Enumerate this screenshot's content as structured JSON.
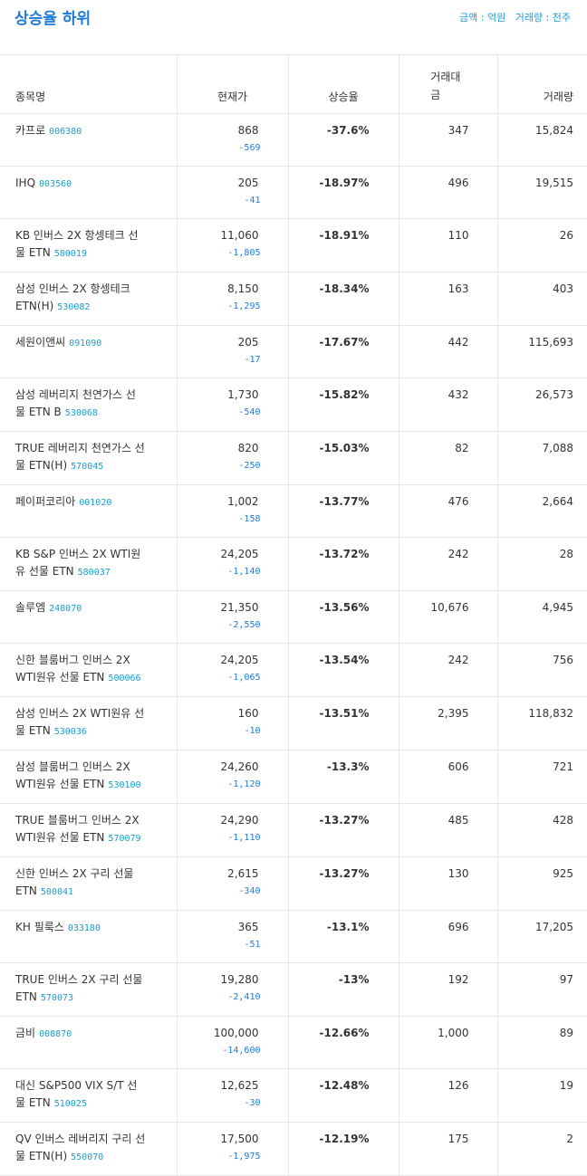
{
  "header": {
    "title": "상승율 하위",
    "units": "금액 : 억원   거래량 : 천주"
  },
  "table": {
    "columns": [
      "종목명",
      "현재가",
      "상승율",
      "거래대금",
      "거래량"
    ],
    "rows": [
      {
        "name": "카프로",
        "code": "006380",
        "price": "868",
        "change": "-569",
        "rate": "-37.6%",
        "amount": "347",
        "volume": "15,824"
      },
      {
        "name": "IHQ",
        "code": "003560",
        "price": "205",
        "change": "-41",
        "rate": "-18.97%",
        "amount": "496",
        "volume": "19,515"
      },
      {
        "name": "KB 인버스 2X 항셍테크 선물 ETN",
        "code": "580019",
        "price": "11,060",
        "change": "-1,805",
        "rate": "-18.91%",
        "amount": "110",
        "volume": "26"
      },
      {
        "name": "삼성 인버스 2X 항셍테크 ETN(H)",
        "code": "530082",
        "price": "8,150",
        "change": "-1,295",
        "rate": "-18.34%",
        "amount": "163",
        "volume": "403"
      },
      {
        "name": "세원이앤씨",
        "code": "091090",
        "price": "205",
        "change": "-17",
        "rate": "-17.67%",
        "amount": "442",
        "volume": "115,693"
      },
      {
        "name": "삼성 레버리지 천연가스 선물 ETN B",
        "code": "530068",
        "price": "1,730",
        "change": "-540",
        "rate": "-15.82%",
        "amount": "432",
        "volume": "26,573"
      },
      {
        "name": "TRUE 레버리지 천연가스 선물 ETN(H)",
        "code": "570045",
        "price": "820",
        "change": "-250",
        "rate": "-15.03%",
        "amount": "82",
        "volume": "7,088"
      },
      {
        "name": "페이퍼코리아",
        "code": "001020",
        "price": "1,002",
        "change": "-158",
        "rate": "-13.77%",
        "amount": "476",
        "volume": "2,664"
      },
      {
        "name": "KB S&P 인버스 2X WTI원유 선물 ETN",
        "code": "580037",
        "price": "24,205",
        "change": "-1,140",
        "rate": "-13.72%",
        "amount": "242",
        "volume": "28"
      },
      {
        "name": "솔루엠",
        "code": "248070",
        "price": "21,350",
        "change": "-2,550",
        "rate": "-13.56%",
        "amount": "10,676",
        "volume": "4,945"
      },
      {
        "name": "신한 블룸버그 인버스 2X WTI원유 선물 ETN",
        "code": "500066",
        "price": "24,205",
        "change": "-1,065",
        "rate": "-13.54%",
        "amount": "242",
        "volume": "756"
      },
      {
        "name": "삼성 인버스 2X WTI원유 선물 ETN",
        "code": "530036",
        "price": "160",
        "change": "-10",
        "rate": "-13.51%",
        "amount": "2,395",
        "volume": "118,832"
      },
      {
        "name": "삼성 블룸버그 인버스 2X WTI원유 선물 ETN",
        "code": "530100",
        "price": "24,260",
        "change": "-1,120",
        "rate": "-13.3%",
        "amount": "606",
        "volume": "721"
      },
      {
        "name": "TRUE 블룸버그 인버스 2X WTI원유 선물 ETN",
        "code": "570079",
        "price": "24,290",
        "change": "-1,110",
        "rate": "-13.27%",
        "amount": "485",
        "volume": "428"
      },
      {
        "name": "신한 인버스 2X 구리 선물 ETN",
        "code": "500041",
        "price": "2,615",
        "change": "-340",
        "rate": "-13.27%",
        "amount": "130",
        "volume": "925"
      },
      {
        "name": "KH 필룩스",
        "code": "033180",
        "price": "365",
        "change": "-51",
        "rate": "-13.1%",
        "amount": "696",
        "volume": "17,205"
      },
      {
        "name": "TRUE 인버스 2X 구리 선물 ETN",
        "code": "570073",
        "price": "19,280",
        "change": "-2,410",
        "rate": "-13%",
        "amount": "192",
        "volume": "97"
      },
      {
        "name": "금비",
        "code": "008870",
        "price": "100,000",
        "change": "-14,600",
        "rate": "-12.66%",
        "amount": "1,000",
        "volume": "89"
      },
      {
        "name": "대신 S&P500 VIX S/T 선물 ETN",
        "code": "510025",
        "price": "12,625",
        "change": "-30",
        "rate": "-12.48%",
        "amount": "126",
        "volume": "19"
      },
      {
        "name": "QV 인버스 레버리지 구리 선물 ETN(H)",
        "code": "550070",
        "price": "17,500",
        "change": "-1,975",
        "rate": "-12.19%",
        "amount": "175",
        "volume": "2"
      }
    ]
  }
}
